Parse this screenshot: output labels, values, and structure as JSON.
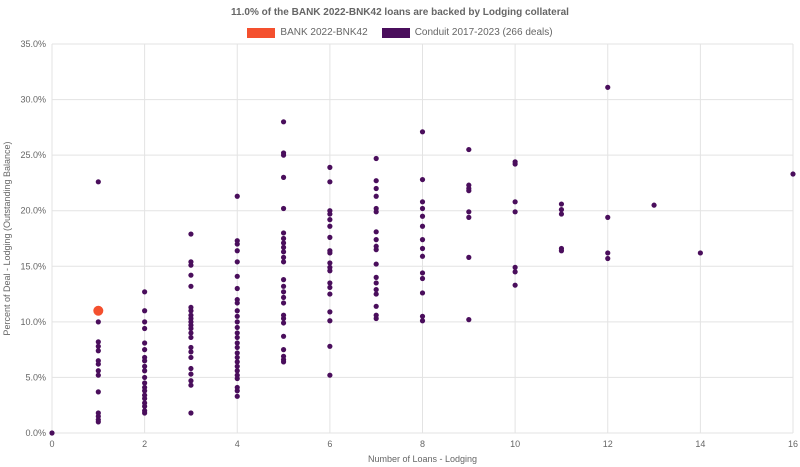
{
  "chart_data": {
    "type": "scatter",
    "title": "11.0% of the BANK 2022-BNK42 loans are backed by Lodging collateral",
    "xlabel": "Number of Loans - Lodging",
    "ylabel": "Percent of Deal - Lodging (Outstanding Balance)",
    "xlim": [
      0,
      16
    ],
    "ylim": [
      0,
      35
    ],
    "x_ticks": [
      "0",
      "2",
      "4",
      "6",
      "8",
      "10",
      "12",
      "14",
      "16"
    ],
    "y_ticks": [
      "0.0%",
      "5.0%",
      "10.0%",
      "15.0%",
      "20.0%",
      "25.0%",
      "30.0%",
      "35.0%"
    ],
    "grid": true,
    "legend_position": "top-center",
    "series": [
      {
        "name": "BANK 2022-BNK42",
        "color": "#f4502e",
        "points": [
          [
            1,
            11.0
          ]
        ]
      },
      {
        "name": "Conduit 2017-2023 (266 deals)",
        "color": "#4a0e5c",
        "points": [
          [
            0,
            0.0
          ],
          [
            1,
            22.6
          ],
          [
            1,
            10.0
          ],
          [
            1,
            8.2
          ],
          [
            1,
            7.8
          ],
          [
            1,
            7.4
          ],
          [
            1,
            6.5
          ],
          [
            1,
            6.2
          ],
          [
            1,
            5.6
          ],
          [
            1,
            5.2
          ],
          [
            1,
            3.7
          ],
          [
            1,
            1.8
          ],
          [
            1,
            1.5
          ],
          [
            1,
            1.2
          ],
          [
            1,
            1.0
          ],
          [
            2,
            12.7
          ],
          [
            2,
            11.0
          ],
          [
            2,
            10.0
          ],
          [
            2,
            9.4
          ],
          [
            2,
            8.1
          ],
          [
            2,
            7.5
          ],
          [
            2,
            6.8
          ],
          [
            2,
            6.5
          ],
          [
            2,
            6.0
          ],
          [
            2,
            5.6
          ],
          [
            2,
            5.0
          ],
          [
            2,
            4.5
          ],
          [
            2,
            4.1
          ],
          [
            2,
            3.8
          ],
          [
            2,
            3.4
          ],
          [
            2,
            3.1
          ],
          [
            2,
            2.7
          ],
          [
            2,
            2.4
          ],
          [
            2,
            2.0
          ],
          [
            2,
            1.8
          ],
          [
            3,
            17.9
          ],
          [
            3,
            15.4
          ],
          [
            3,
            15.1
          ],
          [
            3,
            14.2
          ],
          [
            3,
            13.2
          ],
          [
            3,
            11.3
          ],
          [
            3,
            11.0
          ],
          [
            3,
            10.6
          ],
          [
            3,
            10.3
          ],
          [
            3,
            10.0
          ],
          [
            3,
            9.7
          ],
          [
            3,
            9.4
          ],
          [
            3,
            9.0
          ],
          [
            3,
            8.6
          ],
          [
            3,
            7.7
          ],
          [
            3,
            7.3
          ],
          [
            3,
            6.8
          ],
          [
            3,
            5.8
          ],
          [
            3,
            5.3
          ],
          [
            3,
            4.7
          ],
          [
            3,
            4.3
          ],
          [
            3,
            1.8
          ],
          [
            4,
            21.3
          ],
          [
            4,
            17.3
          ],
          [
            4,
            17.0
          ],
          [
            4,
            16.4
          ],
          [
            4,
            15.4
          ],
          [
            4,
            14.1
          ],
          [
            4,
            13.0
          ],
          [
            4,
            12.0
          ],
          [
            4,
            11.7
          ],
          [
            4,
            11.0
          ],
          [
            4,
            10.5
          ],
          [
            4,
            10.0
          ],
          [
            4,
            9.5
          ],
          [
            4,
            9.0
          ],
          [
            4,
            8.6
          ],
          [
            4,
            8.1
          ],
          [
            4,
            7.7
          ],
          [
            4,
            7.2
          ],
          [
            4,
            6.8
          ],
          [
            4,
            6.4
          ],
          [
            4,
            6.0
          ],
          [
            4,
            5.6
          ],
          [
            4,
            5.2
          ],
          [
            4,
            4.9
          ],
          [
            4,
            4.1
          ],
          [
            4,
            3.8
          ],
          [
            4,
            3.3
          ],
          [
            5,
            28.0
          ],
          [
            5,
            25.2
          ],
          [
            5,
            25.0
          ],
          [
            5,
            23.0
          ],
          [
            5,
            20.2
          ],
          [
            5,
            18.0
          ],
          [
            5,
            17.5
          ],
          [
            5,
            17.1
          ],
          [
            5,
            16.7
          ],
          [
            5,
            16.3
          ],
          [
            5,
            15.8
          ],
          [
            5,
            15.4
          ],
          [
            5,
            13.8
          ],
          [
            5,
            13.2
          ],
          [
            5,
            12.7
          ],
          [
            5,
            12.2
          ],
          [
            5,
            11.7
          ],
          [
            5,
            10.6
          ],
          [
            5,
            10.3
          ],
          [
            5,
            9.9
          ],
          [
            5,
            8.7
          ],
          [
            5,
            7.5
          ],
          [
            5,
            6.9
          ],
          [
            5,
            6.6
          ],
          [
            5,
            6.4
          ],
          [
            6,
            23.9
          ],
          [
            6,
            22.6
          ],
          [
            6,
            20.0
          ],
          [
            6,
            19.7
          ],
          [
            6,
            19.2
          ],
          [
            6,
            18.6
          ],
          [
            6,
            17.6
          ],
          [
            6,
            16.4
          ],
          [
            6,
            16.2
          ],
          [
            6,
            15.3
          ],
          [
            6,
            14.9
          ],
          [
            6,
            14.6
          ],
          [
            6,
            13.5
          ],
          [
            6,
            13.1
          ],
          [
            6,
            12.5
          ],
          [
            6,
            10.9
          ],
          [
            6,
            10.1
          ],
          [
            6,
            7.8
          ],
          [
            6,
            5.2
          ],
          [
            7,
            24.7
          ],
          [
            7,
            22.7
          ],
          [
            7,
            22.0
          ],
          [
            7,
            21.3
          ],
          [
            7,
            20.2
          ],
          [
            7,
            19.9
          ],
          [
            7,
            18.1
          ],
          [
            7,
            17.4
          ],
          [
            7,
            16.8
          ],
          [
            7,
            16.5
          ],
          [
            7,
            15.2
          ],
          [
            7,
            14.0
          ],
          [
            7,
            13.5
          ],
          [
            7,
            12.9
          ],
          [
            7,
            12.5
          ],
          [
            7,
            11.4
          ],
          [
            7,
            10.6
          ],
          [
            7,
            10.3
          ],
          [
            8,
            27.1
          ],
          [
            8,
            22.8
          ],
          [
            8,
            20.8
          ],
          [
            8,
            20.2
          ],
          [
            8,
            19.5
          ],
          [
            8,
            18.6
          ],
          [
            8,
            17.4
          ],
          [
            8,
            16.6
          ],
          [
            8,
            15.9
          ],
          [
            8,
            14.4
          ],
          [
            8,
            13.9
          ],
          [
            8,
            12.6
          ],
          [
            8,
            10.5
          ],
          [
            8,
            10.1
          ],
          [
            9,
            25.5
          ],
          [
            9,
            22.3
          ],
          [
            9,
            22.0
          ],
          [
            9,
            21.8
          ],
          [
            9,
            19.9
          ],
          [
            9,
            19.4
          ],
          [
            9,
            15.8
          ],
          [
            9,
            10.2
          ],
          [
            10,
            24.4
          ],
          [
            10,
            24.2
          ],
          [
            10,
            20.8
          ],
          [
            10,
            19.9
          ],
          [
            10,
            14.9
          ],
          [
            10,
            14.5
          ],
          [
            10,
            13.3
          ],
          [
            11,
            20.6
          ],
          [
            11,
            20.1
          ],
          [
            11,
            19.7
          ],
          [
            11,
            16.6
          ],
          [
            11,
            16.4
          ],
          [
            12,
            31.1
          ],
          [
            12,
            19.4
          ],
          [
            12,
            16.2
          ],
          [
            12,
            15.7
          ],
          [
            13,
            20.5
          ],
          [
            14,
            16.2
          ],
          [
            16,
            23.3
          ]
        ]
      }
    ]
  }
}
